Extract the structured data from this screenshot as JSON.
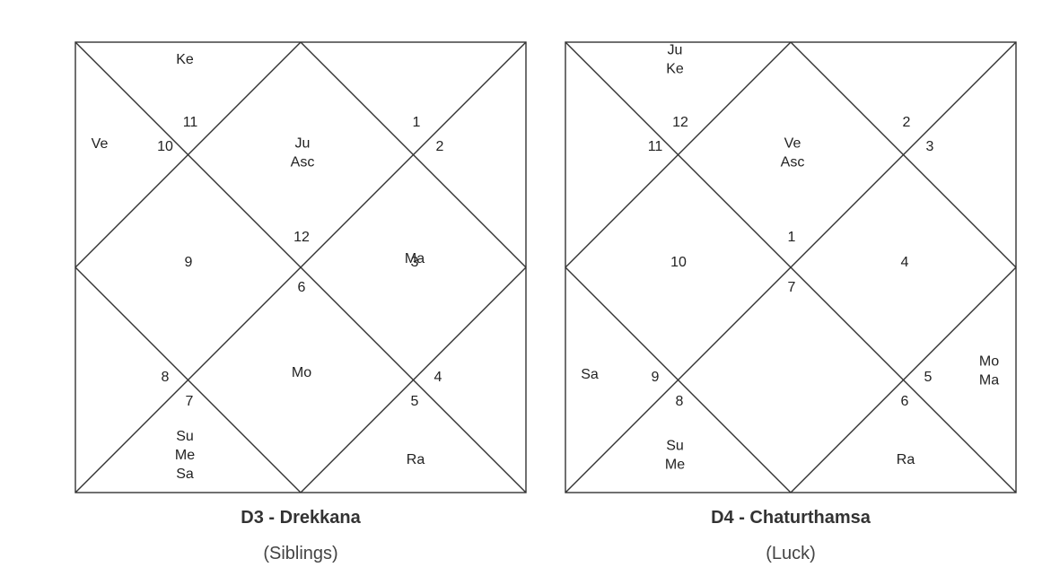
{
  "charts": [
    {
      "id": "d3",
      "title": "D3 - Drekkana",
      "subtitle": "(Siblings)",
      "houses": [
        {
          "house": 1,
          "sign": "12",
          "planets": [
            "Ju",
            "Asc"
          ]
        },
        {
          "house": 2,
          "sign": "11",
          "planets": []
        },
        {
          "house": 3,
          "sign": "10",
          "planets": []
        },
        {
          "house": 4,
          "sign": "9",
          "planets": [
            "Ma"
          ]
        },
        {
          "house": 5,
          "sign": "8",
          "planets": []
        },
        {
          "house": 6,
          "sign": "7",
          "planets": [
            "Ra"
          ]
        },
        {
          "house": 7,
          "sign": "6",
          "planets": [
            "Mo"
          ]
        },
        {
          "house": 8,
          "sign": "5",
          "planets": [
            "Su",
            "Me",
            "Sa"
          ]
        },
        {
          "house": 9,
          "sign": "4",
          "planets": []
        },
        {
          "house": 10,
          "sign": "3",
          "planets": []
        },
        {
          "house": 11,
          "sign": "2",
          "planets": [
            "Ve"
          ]
        },
        {
          "house": 12,
          "sign": "1",
          "planets": [
            "Ke"
          ]
        }
      ]
    },
    {
      "id": "d4",
      "title": "D4 - Chaturthamsa",
      "subtitle": "(Luck)",
      "houses": [
        {
          "house": 1,
          "sign": "1",
          "planets": [
            "Ve",
            "Asc"
          ]
        },
        {
          "house": 2,
          "sign": "12",
          "planets": []
        },
        {
          "house": 3,
          "sign": "11",
          "planets": []
        },
        {
          "house": 4,
          "sign": "10",
          "planets": []
        },
        {
          "house": 5,
          "sign": "9",
          "planets": [
            "Mo",
            "Ma"
          ]
        },
        {
          "house": 6,
          "sign": "8",
          "planets": [
            "Ra"
          ]
        },
        {
          "house": 7,
          "sign": "7",
          "planets": []
        },
        {
          "house": 8,
          "sign": "6",
          "planets": [
            "Su",
            "Me"
          ]
        },
        {
          "house": 9,
          "sign": "5",
          "planets": [
            "Sa"
          ]
        },
        {
          "house": 10,
          "sign": "4",
          "planets": []
        },
        {
          "house": 11,
          "sign": "3",
          "planets": []
        },
        {
          "house": 12,
          "sign": "2",
          "planets": [
            "Ju",
            "Ke"
          ]
        }
      ]
    }
  ]
}
